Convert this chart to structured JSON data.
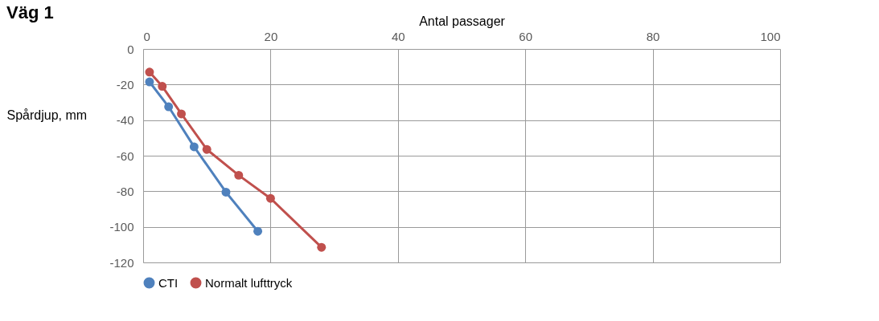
{
  "chart_data": {
    "type": "line",
    "title": "Väg 1",
    "xlabel": "Antal passager",
    "ylabel": "Spårdjup, mm",
    "xlim": [
      0,
      100
    ],
    "xticks": [
      0,
      20,
      40,
      60,
      80,
      100
    ],
    "ylim": [
      -120,
      0
    ],
    "yticks": [
      -120,
      -100,
      -80,
      -60,
      -40,
      -20,
      0
    ],
    "grid": true,
    "legend": "bottom",
    "marker": "circle",
    "line_style": "solid",
    "series": [
      {
        "name": "CTI",
        "color": "#4f81bd",
        "x": [
          1,
          4,
          8,
          13,
          18
        ],
        "values": [
          -18.5,
          -32.5,
          -55,
          -80.5,
          -102.5
        ]
      },
      {
        "name": "Normalt lufttryck",
        "color": "#c0504d",
        "x": [
          1,
          3,
          6,
          10,
          15,
          20,
          28
        ],
        "values": [
          -13,
          -21,
          -36.5,
          -56.5,
          -71,
          -84,
          -111.5
        ]
      }
    ]
  }
}
